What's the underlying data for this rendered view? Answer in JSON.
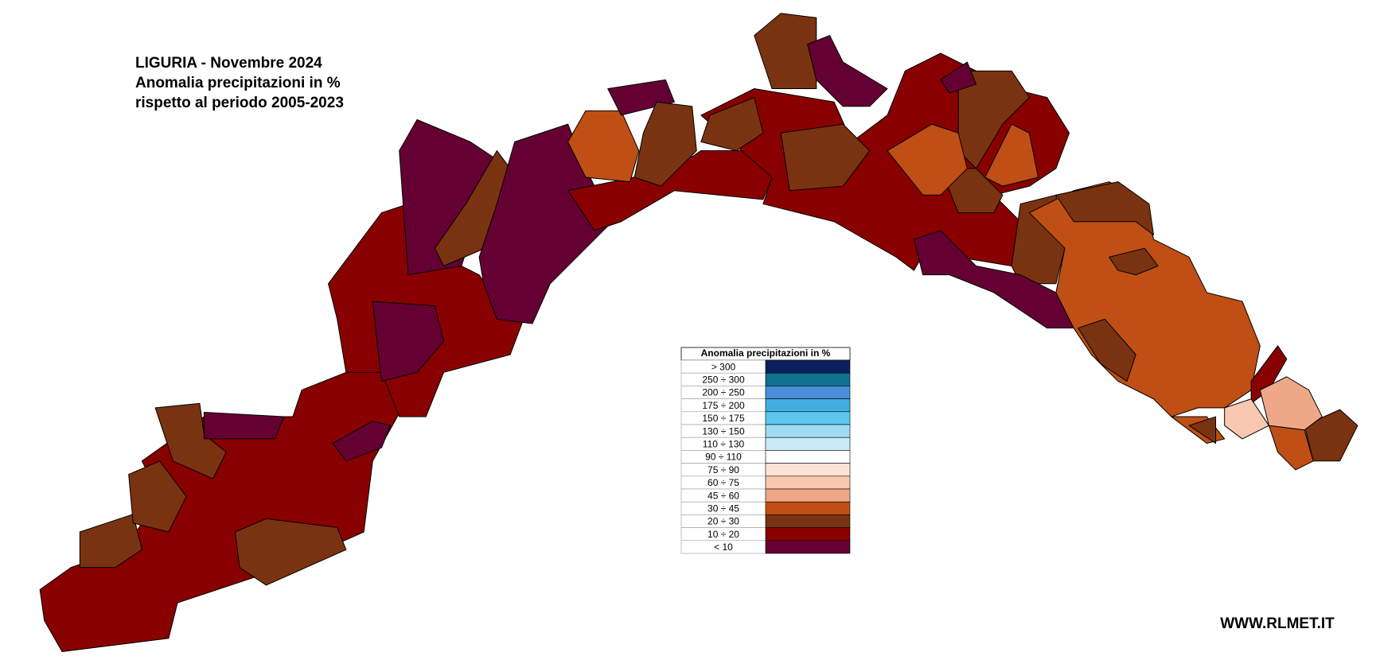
{
  "header": {
    "title_lines": [
      "LIGURIA - Novembre 2024",
      "Anomalia precipitazioni in %",
      "rispetto al periodo 2005-2023"
    ]
  },
  "legend": {
    "title": "Anomalia precipitazioni in %",
    "items": [
      {
        "label": "> 300",
        "color": "#0d1f5c"
      },
      {
        "label": "250 ÷ 300",
        "color": "#10718f"
      },
      {
        "label": "200 ÷ 250",
        "color": "#4a8fd9"
      },
      {
        "label": "175 ÷ 200",
        "color": "#41aee0"
      },
      {
        "label": "150 ÷ 175",
        "color": "#5cc8ef"
      },
      {
        "label": "130 ÷ 150",
        "color": "#9fdcf3"
      },
      {
        "label": "110 ÷ 130",
        "color": "#c9ebf7"
      },
      {
        "label": "90 ÷ 110",
        "color": "#ffffff"
      },
      {
        "label": "75 ÷ 90",
        "color": "#fde3d6"
      },
      {
        "label": "60 ÷ 75",
        "color": "#f8c8b0"
      },
      {
        "label": "45 ÷ 60",
        "color": "#eea888"
      },
      {
        "label": "30 ÷ 45",
        "color": "#bf4f14"
      },
      {
        "label": "20 ÷ 30",
        "color": "#7a3310"
      },
      {
        "label": "10 ÷ 20",
        "color": "#880000"
      },
      {
        "label": "< 10",
        "color": "#650033"
      }
    ]
  },
  "footer": {
    "website": "WWW.RLMET.IT"
  }
}
